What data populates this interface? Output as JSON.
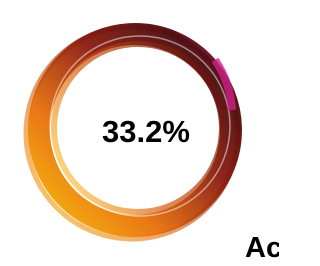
{
  "badge": {
    "value_text": "33.2%"
  },
  "caption": {
    "text": "Ac"
  }
}
